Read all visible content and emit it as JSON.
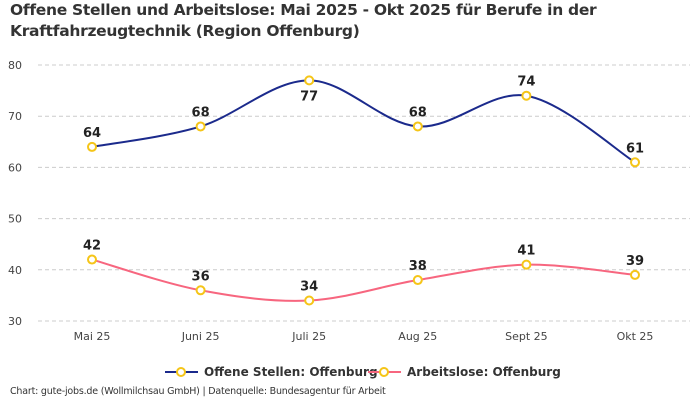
{
  "title": "Offene Stellen und Arbeitslose: Mai 2025 - Okt 2025 für Berufe in der Kraftfahrzeugtechnik (Region Offenburg)",
  "footer": "Chart: gute-jobs.de (Wollmilchsau GmbH) | Datenquelle: Bundesagentur für Arbeit",
  "chart_data": {
    "type": "line",
    "categories": [
      "Mai 25",
      "Juni 25",
      "Juli 25",
      "Aug 25",
      "Sept 25",
      "Okt 25"
    ],
    "ylim": [
      30,
      80
    ],
    "yticks": [
      30,
      40,
      50,
      60,
      70,
      80
    ],
    "grid": true,
    "legend": "bottom",
    "marker_color": "#f5c518",
    "series": [
      {
        "name": "Offene Stellen: Offenburg",
        "values": [
          64,
          68,
          77,
          68,
          74,
          61
        ],
        "color": "#1b2a8c"
      },
      {
        "name": "Arbeitslose: Offenburg",
        "values": [
          42,
          36,
          34,
          38,
          41,
          39
        ],
        "color": "#f7667f"
      }
    ]
  }
}
